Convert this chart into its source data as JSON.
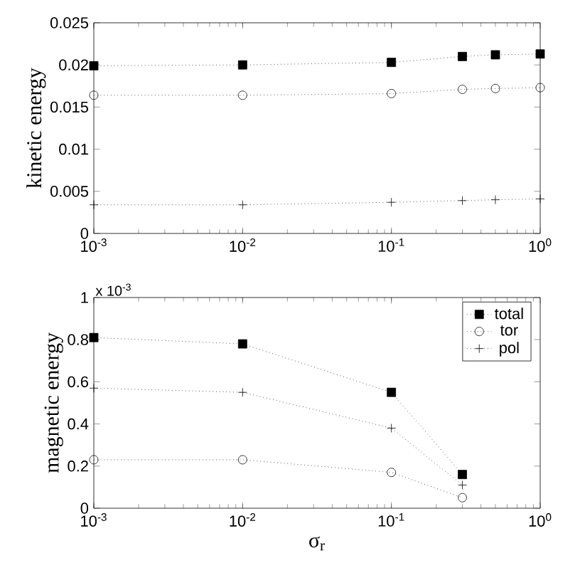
{
  "chart_data": [
    {
      "type": "line",
      "ylabel": "kinetic energy",
      "log": "x",
      "line_style": "dotted",
      "grid": false,
      "legend": false,
      "xlim": [
        0.001,
        1
      ],
      "ylim": [
        0,
        0.025
      ],
      "xticks": [
        {
          "value": 0.001,
          "label": "10$^{-3}$"
        },
        {
          "value": 0.01,
          "label": "10$^{-2}$"
        },
        {
          "value": 0.1,
          "label": "10$^{-1}$"
        },
        {
          "value": 1,
          "label": "10$^{0}$"
        }
      ],
      "yticks": [
        0,
        0.005,
        0.01,
        0.015,
        0.02,
        0.025
      ],
      "x": [
        0.001,
        0.01,
        0.1,
        0.3,
        0.5,
        1
      ],
      "series": [
        {
          "color": "#000000",
          "marker": "square",
          "values": [
            0.0199,
            0.02,
            0.0203,
            0.021,
            0.0212,
            0.0213
          ]
        },
        {
          "color": "#000000",
          "marker": "circle",
          "values": [
            0.0164,
            0.0164,
            0.0166,
            0.0171,
            0.0172,
            0.0173
          ]
        },
        {
          "color": "#000000",
          "marker": "cross",
          "values": [
            0.0034,
            0.0034,
            0.0037,
            0.0039,
            0.004,
            0.0041
          ]
        }
      ]
    },
    {
      "type": "line",
      "ylabel": "magnetic energy",
      "xlabel": "σ$_{r}$",
      "log": "x",
      "line_style": "dotted",
      "grid": false,
      "legend": "top right",
      "annotations": [
        "x 10$^{-3}$"
      ],
      "xlim": [
        0.001,
        1
      ],
      "ylim": [
        0,
        1
      ],
      "xticks": [
        {
          "value": 0.001,
          "label": "10$^{-3}$"
        },
        {
          "value": 0.01,
          "label": "10$^{-2}$"
        },
        {
          "value": 0.1,
          "label": "10$^{-1}$"
        },
        {
          "value": 1,
          "label": "10$^{0}$"
        }
      ],
      "yticks": [
        0,
        0.2,
        0.4,
        0.6,
        0.8,
        1
      ],
      "x": [
        0.001,
        0.01,
        0.1,
        0.3
      ],
      "series": [
        {
          "name": "total",
          "color": "#000000",
          "marker": "square",
          "values": [
            0.81,
            0.78,
            0.55,
            0.16
          ]
        },
        {
          "name": "tor",
          "color": "#000000",
          "marker": "circle",
          "values": [
            0.23,
            0.23,
            0.17,
            0.05
          ]
        },
        {
          "name": "pol",
          "color": "#000000",
          "marker": "cross",
          "values": [
            0.57,
            0.55,
            0.38,
            0.11
          ]
        }
      ]
    }
  ]
}
